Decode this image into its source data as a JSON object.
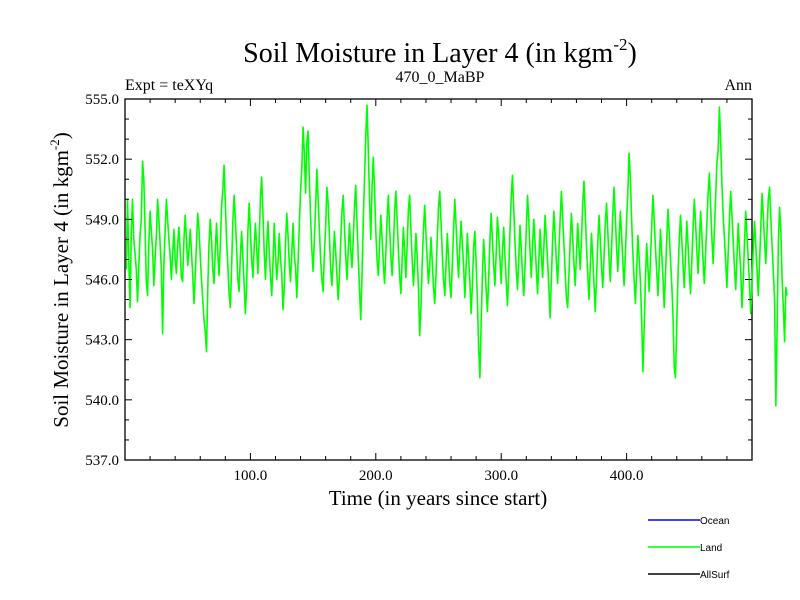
{
  "chart_data": {
    "type": "line",
    "title": "Soil Moisture in Layer 4 (in kgm",
    "title_sup": "-2",
    "title_close": ")",
    "subtitle": "470_0_MaBP",
    "left_label": "Expt = teXYq",
    "right_label": "Ann",
    "xlabel": "Time (in years since start)",
    "ylabel": "Soil Moisture in Layer 4 (in kgm",
    "ylabel_sup": "-2",
    "ylabel_close": ")",
    "xlim": [
      0,
      500
    ],
    "ylim": [
      537,
      555
    ],
    "x_ticks": [
      100,
      200,
      300,
      400
    ],
    "x_tick_labels": [
      "100.0",
      "200.0",
      "300.0",
      "400.0"
    ],
    "y_ticks": [
      537,
      540,
      543,
      546,
      549,
      552,
      555
    ],
    "y_tick_labels": [
      "537.0",
      "540.0",
      "543.0",
      "546.0",
      "549.0",
      "552.0",
      "555.0"
    ],
    "legend_position": "bottom-right",
    "legend": [
      {
        "name": "Ocean",
        "color": "#0000ff"
      },
      {
        "name": "Land",
        "color": "#00ff00"
      },
      {
        "name": "AllSurf",
        "color": "#000000"
      }
    ],
    "series": [
      {
        "name": "Land",
        "color": "#00ff00",
        "x_start": 1,
        "x_step": 1,
        "values": [
          546.5,
          550.0,
          547.0,
          544.6,
          548.3,
          550.0,
          548.0,
          547.3,
          546.5,
          544.9,
          546.6,
          548.2,
          549.0,
          551.9,
          551.0,
          548.6,
          545.9,
          545.2,
          547.8,
          549.4,
          548.4,
          547.5,
          545.7,
          547.0,
          548.2,
          550.0,
          549.0,
          547.8,
          546.5,
          543.3,
          546.8,
          548.4,
          550.0,
          549.0,
          548.0,
          547.2,
          546.0,
          547.3,
          548.5,
          547.0,
          546.3,
          547.8,
          548.6,
          547.4,
          546.1,
          545.9,
          548.0,
          549.2,
          548.0,
          546.7,
          547.5,
          548.5,
          547.4,
          546.2,
          544.8,
          546.2,
          547.8,
          549.3,
          548.5,
          547.2,
          546.0,
          545.0,
          544.0,
          543.4,
          542.4,
          545.5,
          547.8,
          549.0,
          548.0,
          546.5,
          545.8,
          547.5,
          548.8,
          547.3,
          546.2,
          547.7,
          549.6,
          550.5,
          551.7,
          549.8,
          548.0,
          546.7,
          545.3,
          544.6,
          546.6,
          548.9,
          550.2,
          549.0,
          547.6,
          546.0,
          545.4,
          547.2,
          548.4,
          547.1,
          545.8,
          544.3,
          545.6,
          548.4,
          549.8,
          548.4,
          547.0,
          546.1,
          547.6,
          548.8,
          547.6,
          546.3,
          547.9,
          550.1,
          551.1,
          549.3,
          547.4,
          546.0,
          547.7,
          548.9,
          547.4,
          546.2,
          545.2,
          546.8,
          548.8,
          547.3,
          546.0,
          546.9,
          548.3,
          547.0,
          546.3,
          544.5,
          545.6,
          547.8,
          549.3,
          548.2,
          546.8,
          545.9,
          547.3,
          548.8,
          547.2,
          546.6,
          545.1,
          546.8,
          548.7,
          550.4,
          551.5,
          553.6,
          552.3,
          550.3,
          552.8,
          553.4,
          551.0,
          549.1,
          547.5,
          546.4,
          548.0,
          549.6,
          551.5,
          550.0,
          548.5,
          547.0,
          546.0,
          545.4,
          547.3,
          548.6,
          550.6,
          549.8,
          548.2,
          546.5,
          545.7,
          547.0,
          548.4,
          547.4,
          546.2,
          545.0,
          546.1,
          547.9,
          549.4,
          550.2,
          548.6,
          547.2,
          546.0,
          547.4,
          548.8,
          547.5,
          546.6,
          548.0,
          549.6,
          550.7,
          548.9,
          547.1,
          545.5,
          544.0,
          546.2,
          548.9,
          551.0,
          553.2,
          554.7,
          552.5,
          550.0,
          548.0,
          550.6,
          552.1,
          550.5,
          548.4,
          547.0,
          546.2,
          547.7,
          549.2,
          548.0,
          546.8,
          545.8,
          547.3,
          549.0,
          550.2,
          548.6,
          547.2,
          546.2,
          547.5,
          549.4,
          550.4,
          549.0,
          547.5,
          546.2,
          545.3,
          547.0,
          548.6,
          547.4,
          546.1,
          547.7,
          549.5,
          550.2,
          548.5,
          547.0,
          545.7,
          546.8,
          548.3,
          547.1,
          545.6,
          543.2,
          544.6,
          546.8,
          548.5,
          549.7,
          548.3,
          547.0,
          545.8,
          546.7,
          548.1,
          546.9,
          545.6,
          544.8,
          546.2,
          548.0,
          549.6,
          550.4,
          548.9,
          547.3,
          546.0,
          545.2,
          546.7,
          548.3,
          547.1,
          545.8,
          545.1,
          546.7,
          548.5,
          550.0,
          548.7,
          547.2,
          546.1,
          547.6,
          548.9,
          547.8,
          546.7,
          545.1,
          546.6,
          548.3,
          547.1,
          545.9,
          544.3,
          545.7,
          547.6,
          548.4,
          546.8,
          545.0,
          542.6,
          541.1,
          543.8,
          546.2,
          548.0,
          546.9,
          545.5,
          544.4,
          546.0,
          547.9,
          549.3,
          548.0,
          546.7,
          545.7,
          547.3,
          549.1,
          548.2,
          547.0,
          545.8,
          547.4,
          548.6,
          547.2,
          545.9,
          544.7,
          546.3,
          548.4,
          550.1,
          551.2,
          549.5,
          547.9,
          546.5,
          545.5,
          547.0,
          548.7,
          547.5,
          546.2,
          545.2,
          546.7,
          548.5,
          550.2,
          549.0,
          547.4,
          546.1,
          547.7,
          549.0,
          547.8,
          546.5,
          545.3,
          546.9,
          548.5,
          547.3,
          546.1,
          547.6,
          549.2,
          548.1,
          546.9,
          545.6,
          544.1,
          546.0,
          548.0,
          549.4,
          548.2,
          546.9,
          545.8,
          547.4,
          549.0,
          550.4,
          549.1,
          547.8,
          546.4,
          545.1,
          544.6,
          546.2,
          547.9,
          549.3,
          548.1,
          546.8,
          545.7,
          547.2,
          548.8,
          547.6,
          546.5,
          548.0,
          549.8,
          550.9,
          549.3,
          547.7,
          546.3,
          545.0,
          546.6,
          548.3,
          547.1,
          545.8,
          544.4,
          546.0,
          547.8,
          549.2,
          548.0,
          546.6,
          545.6,
          547.1,
          548.8,
          549.8,
          548.4,
          547.1,
          545.9,
          547.5,
          549.3,
          550.6,
          549.1,
          547.6,
          546.4,
          547.9,
          549.4,
          548.2,
          546.9,
          545.7,
          547.2,
          548.9,
          550.4,
          552.3,
          551.1,
          549.0,
          547.3,
          546.0,
          544.8,
          546.4,
          548.2,
          547.1,
          545.9,
          544.0,
          541.4,
          543.6,
          546.0,
          547.8,
          546.6,
          545.4,
          546.9,
          548.6,
          550.2,
          549.0,
          547.6,
          546.4,
          545.2,
          546.8,
          548.5,
          547.3,
          546.1,
          544.6,
          546.2,
          548.0,
          549.5,
          548.3,
          547.0,
          545.8,
          544.2,
          541.6,
          541.1,
          543.8,
          546.2,
          548.0,
          549.2,
          548.0,
          546.7,
          545.6,
          547.2,
          548.9,
          547.7,
          546.4,
          545.3,
          546.9,
          548.6,
          550.0,
          548.8,
          547.5,
          546.3,
          547.8,
          549.4,
          548.2,
          546.9,
          545.8,
          547.3,
          548.8,
          550.3,
          551.3,
          549.7,
          548.1,
          546.8,
          548.5,
          550.1,
          551.8,
          552.4,
          554.6,
          552.9,
          550.8,
          549.2,
          548.1,
          546.9,
          545.6,
          547.3,
          549.0,
          550.4,
          549.2,
          547.9,
          546.6,
          545.5,
          547.1,
          548.8,
          547.6,
          546.4,
          544.6,
          545.9,
          547.8,
          549.4,
          548.2,
          547.0,
          545.8,
          544.3,
          545.8,
          547.6,
          548.9,
          547.7,
          546.5,
          545.2,
          546.8,
          548.6,
          550.3,
          549.2,
          547.9,
          546.8,
          548.4,
          550.0,
          550.6,
          549.1,
          547.7,
          546.4,
          545.0,
          539.7,
          543.4,
          547.8,
          549.6,
          548.4,
          546.0,
          544.6,
          542.9,
          545.6,
          545.2
        ]
      }
    ]
  }
}
